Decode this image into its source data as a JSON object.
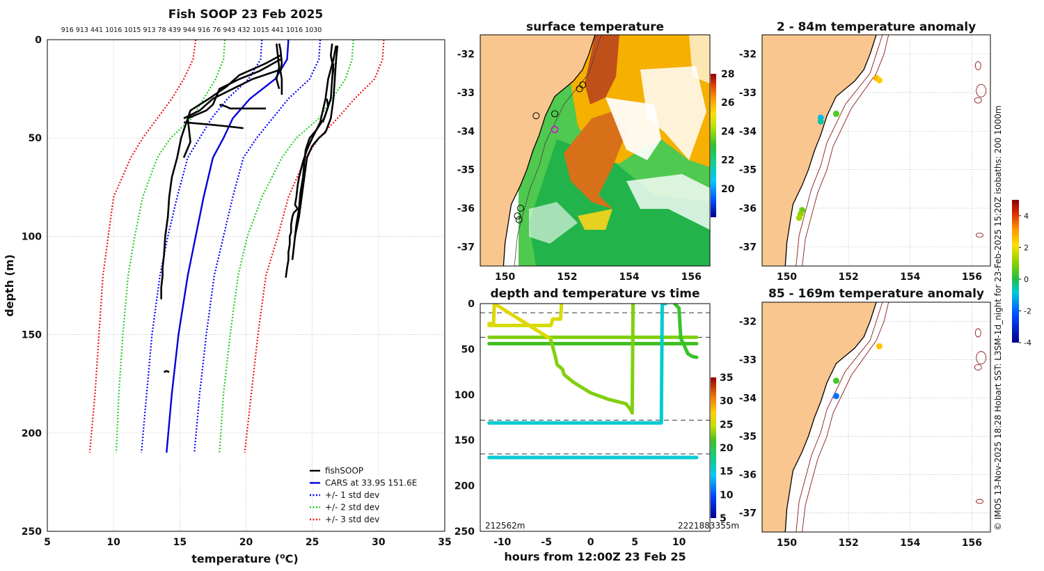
{
  "figure": {
    "credit": "© IMOS 13-Nov-2025 18:28 Hobart SST: L3SM-1d_night for 23-Feb-2025 15:20Z isobaths: 200  1000m"
  },
  "colors": {
    "fishsoop": "#000000",
    "cars": "#0000dd",
    "std1": "#0000ff",
    "std2": "#22cc22",
    "std3": "#ee1111",
    "land": "#f9c690",
    "isobath": "#8b1a1a"
  },
  "chart_data": [
    {
      "id": "profile",
      "type": "line",
      "title": "Fish SOOP 23 Feb 2025",
      "top_numbers": "916 913 441 1016 1015 913 78 439 944 916 76 943 432 1015 441 1016 1030",
      "xlabel": "temperature (",
      "xlabel_sup": "o",
      "xlabel_end": "C)",
      "ylabel": "depth (m)",
      "xlim": [
        5,
        35
      ],
      "ylim": [
        250,
        0
      ],
      "xticks": [
        "5",
        "10",
        "15",
        "20",
        "25",
        "30",
        "35"
      ],
      "yticks": [
        "0",
        "50",
        "100",
        "150",
        "200",
        "250"
      ],
      "legend": [
        {
          "label": "fishSOOP",
          "style": "solid-black"
        },
        {
          "label": "CARS at 33.9S 151.6E",
          "style": "solid-blue"
        },
        {
          "label": "+/- 1 std dev",
          "style": "dot-blue"
        },
        {
          "label": "+/- 2 std dev",
          "style": "dot-green"
        },
        {
          "label": "+/- 3 std dev",
          "style": "dot-red"
        }
      ],
      "cars_depth": [
        0,
        10,
        20,
        30,
        40,
        50,
        60,
        80,
        100,
        120,
        150,
        180,
        210
      ],
      "cars_mean": [
        23.2,
        23.1,
        22.2,
        20.3,
        19.0,
        18.3,
        17.5,
        16.8,
        16.2,
        15.6,
        14.9,
        14.4,
        14.0
      ],
      "std": [
        {
          "which": 1,
          "lower": [
            21.2,
            21.1,
            20.2,
            18.6,
            17.4,
            16.5,
            15.6,
            14.8,
            14.1,
            13.5,
            12.9,
            12.5,
            12.1
          ],
          "upper": [
            25.6,
            25.5,
            24.8,
            23.2,
            22.0,
            20.8,
            19.8,
            19.0,
            18.3,
            17.6,
            17.0,
            16.5,
            16.1
          ]
        },
        {
          "which": 2,
          "lower": [
            18.4,
            18.3,
            17.7,
            16.8,
            15.9,
            14.3,
            13.3,
            12.2,
            11.6,
            11.1,
            10.7,
            10.4,
            10.2
          ],
          "upper": [
            28.1,
            28.0,
            27.5,
            26.5,
            25.5,
            23.8,
            22.7,
            21.2,
            20.1,
            19.4,
            18.8,
            18.3,
            18.0
          ]
        },
        {
          "which": 3,
          "lower": [
            16.2,
            16.0,
            15.3,
            14.4,
            13.3,
            12.2,
            11.3,
            10.0,
            9.6,
            9.2,
            8.9,
            8.6,
            8.2
          ],
          "upper": [
            30.4,
            30.3,
            29.7,
            28.2,
            26.9,
            25.5,
            24.5,
            23.2,
            22.4,
            21.5,
            20.9,
            20.4,
            19.9
          ]
        }
      ],
      "fishsoop_profiles": [
        {
          "t": [
            22.5,
            22.6,
            22.7,
            22.6,
            22.7,
            22.7
          ],
          "d": [
            2,
            5,
            12,
            16,
            20,
            28
          ]
        },
        {
          "t": [
            22.3,
            22.4,
            22.5,
            22.3,
            22.5
          ],
          "d": [
            2,
            8,
            14,
            20,
            25
          ]
        },
        {
          "t": [
            22.6,
            21.0,
            19.5,
            18.0,
            17.5,
            17.0,
            15.6,
            15.8,
            15.3
          ],
          "d": [
            10,
            16,
            20,
            25,
            33,
            36,
            40,
            52,
            60
          ]
        },
        {
          "t": [
            22.7,
            20.5,
            19.0,
            17.5,
            16.5,
            15.3
          ],
          "d": [
            15,
            20,
            25,
            30,
            36,
            40
          ]
        },
        {
          "t": [
            22.6,
            21.5,
            19.5,
            18.5,
            17.2,
            15.8,
            15.5,
            15.1,
            14.8,
            14.4,
            14.2,
            14.1,
            13.9,
            13.8,
            13.7,
            13.7,
            13.6,
            13.6
          ],
          "d": [
            8,
            12,
            18,
            24,
            30,
            36,
            42,
            50,
            60,
            70,
            80,
            90,
            100,
            110,
            116,
            120,
            126,
            132
          ]
        },
        {
          "t": [
            18.0,
            18.5,
            18.8,
            19.2,
            20.0,
            21.5
          ],
          "d": [
            33,
            34,
            35,
            35,
            35,
            35
          ]
        },
        {
          "t": [
            15.3,
            17.0,
            18.5,
            19.8
          ],
          "d": [
            42,
            43,
            44,
            45
          ]
        },
        {
          "t": [
            26.5,
            26.4,
            26.6,
            26.5
          ],
          "d": [
            2,
            8,
            15,
            20
          ]
        },
        {
          "t": [
            26.8,
            26.6,
            26.2,
            26.0,
            25.8,
            25.6,
            25.3,
            25.0,
            24.6,
            24.3,
            24.0,
            23.9,
            23.8,
            23.7,
            23.9,
            23.6,
            23.5,
            23.4,
            23.4,
            23.3,
            23.3,
            23.2,
            23.2,
            23.1,
            23.0
          ],
          "d": [
            3,
            10,
            20,
            30,
            36,
            42,
            46,
            50,
            56,
            62,
            70,
            74,
            80,
            84,
            86,
            88,
            90,
            94,
            98,
            100,
            104,
            108,
            112,
            116,
            121
          ]
        },
        {
          "t": [
            26.9,
            26.8,
            26.7,
            26.6,
            26.4,
            26.0,
            25.5,
            25.0,
            24.6,
            24.4,
            24.2,
            24.0,
            23.7,
            23.6,
            23.5
          ],
          "d": [
            3,
            10,
            20,
            30,
            40,
            47,
            50,
            54,
            60,
            70,
            80,
            90,
            100,
            106,
            112
          ]
        },
        {
          "t": [
            26.6,
            26.5,
            26.4,
            25.9,
            25.3,
            24.8,
            24.5,
            24.4,
            24.3,
            24.1,
            24.0,
            23.8,
            23.7
          ],
          "d": [
            12,
            20,
            30,
            40,
            46,
            50,
            56,
            62,
            70,
            78,
            86,
            94,
            100
          ]
        },
        {
          "t": [
            26.1,
            26.2,
            26.0,
            25.8
          ],
          "d": [
            30,
            34,
            38,
            42
          ]
        },
        {
          "t": [
            13.8,
            14.0,
            14.2
          ],
          "d": [
            169,
            168.5,
            169
          ]
        }
      ]
    },
    {
      "id": "sst_map",
      "type": "heatmap",
      "title": "surface temperature",
      "xticks": [
        "150",
        "152",
        "154",
        "156"
      ],
      "yticks": [
        "-32",
        "-33",
        "-34",
        "-35",
        "-36",
        "-37"
      ],
      "xlim": [
        149.2,
        156.6
      ],
      "ylim": [
        -37.5,
        -31.5
      ],
      "colorbar": {
        "min": 18,
        "max": 28,
        "ticks": [
          "20",
          "22",
          "24",
          "26",
          "28"
        ]
      }
    },
    {
      "id": "timeseries",
      "type": "scatter",
      "title": "depth and temperature vs time",
      "xlabel": "hours from 12:00Z 23 Feb 25",
      "xticks": [
        "-10",
        "-5",
        "0",
        "5",
        "10"
      ],
      "yticks": [
        "0",
        "50",
        "100",
        "150",
        "200",
        "250"
      ],
      "xlim": [
        -12.5,
        13.5
      ],
      "ylim": [
        250,
        0
      ],
      "colorbar": {
        "min": 5,
        "max": 35,
        "ticks": [
          "5",
          "10",
          "15",
          "20",
          "25",
          "30",
          "35"
        ]
      },
      "start_label": "212562m",
      "end_label": "2221883355m",
      "ref_depths": [
        10,
        37,
        128,
        165
      ],
      "tracks": [
        {
          "temp": 23.0,
          "t": [
            -11.5,
            12.0
          ],
          "d": [
            37,
            37
          ]
        },
        {
          "temp": 21.5,
          "t": [
            -11.5,
            12.0
          ],
          "d": [
            44,
            44
          ]
        },
        {
          "temp": 25.5,
          "t": [
            -11.5,
            -4.5,
            -4.3,
            -3.4,
            -3.3
          ],
          "d": [
            24,
            24,
            17,
            17,
            0
          ]
        },
        {
          "temp": 26.0,
          "t": [
            -11.5,
            -11.0,
            -10.9,
            -4.5
          ],
          "d": [
            22,
            22,
            0,
            39
          ]
        },
        {
          "temp": 23.0,
          "t": [
            -4.5,
            -4.0,
            -3.8,
            -3.2,
            -3.0,
            -2.0,
            -1.0,
            0,
            2,
            4,
            4.5,
            4.7,
            4.8
          ],
          "d": [
            40,
            58,
            67,
            72,
            78,
            86,
            92,
            98,
            105,
            110,
            116,
            120,
            0
          ]
        },
        {
          "temp": 15.5,
          "t": [
            -11.5,
            8.0,
            8.1,
            8.5
          ],
          "d": [
            131,
            131,
            0,
            0
          ]
        },
        {
          "temp": 15.3,
          "t": [
            -11.5,
            12.0
          ],
          "d": [
            169,
            169
          ]
        },
        {
          "temp": 21.0,
          "t": [
            9.5,
            10.0,
            10.2,
            10.5,
            11.0,
            11.5,
            12.0
          ],
          "d": [
            0,
            5,
            38,
            44,
            55,
            58,
            59
          ]
        }
      ]
    },
    {
      "id": "anom_shallow",
      "type": "scatter",
      "title": "2 - 84m temperature anomaly",
      "xticks": [
        "150",
        "152",
        "154",
        "156"
      ],
      "yticks": [
        "-32",
        "-33",
        "-34",
        "-35",
        "-36",
        "-37"
      ],
      "xlim": [
        149.2,
        156.6
      ],
      "ylim": [
        -37.5,
        -31.5
      ],
      "points": [
        {
          "lon": 151.6,
          "lat": -33.55,
          "anom": 0.5
        },
        {
          "lon": 151.1,
          "lat": -33.65,
          "anom": -1.0
        },
        {
          "lon": 151.1,
          "lat": -33.75,
          "anom": -0.5
        },
        {
          "lon": 152.9,
          "lat": -32.62,
          "anom": 2.7
        },
        {
          "lon": 153.0,
          "lat": -32.68,
          "anom": 2.4
        },
        {
          "lon": 150.5,
          "lat": -36.05,
          "anom": 0.7
        },
        {
          "lon": 150.45,
          "lat": -36.15,
          "anom": 1.1
        },
        {
          "lon": 150.4,
          "lat": -36.25,
          "anom": 1.3
        }
      ]
    },
    {
      "id": "anom_deep",
      "type": "scatter",
      "title": "85 - 169m temperature anomaly",
      "xticks": [
        "150",
        "152",
        "154",
        "156"
      ],
      "yticks": [
        "-32",
        "-33",
        "-34",
        "-35",
        "-36",
        "-37"
      ],
      "xlim": [
        149.2,
        156.6
      ],
      "ylim": [
        -37.5,
        -31.5
      ],
      "points": [
        {
          "lon": 153.0,
          "lat": -32.65,
          "anom": 2.5
        },
        {
          "lon": 151.6,
          "lat": -33.55,
          "anom": 0.4
        },
        {
          "lon": 151.6,
          "lat": -33.95,
          "anom": -1.8
        }
      ]
    },
    {
      "id": "anom_colorbar",
      "type": "heatmap",
      "colorbar": {
        "min": -4,
        "max": 5,
        "ticks": [
          "4",
          "2",
          "0",
          "-2",
          "-4"
        ]
      }
    }
  ]
}
